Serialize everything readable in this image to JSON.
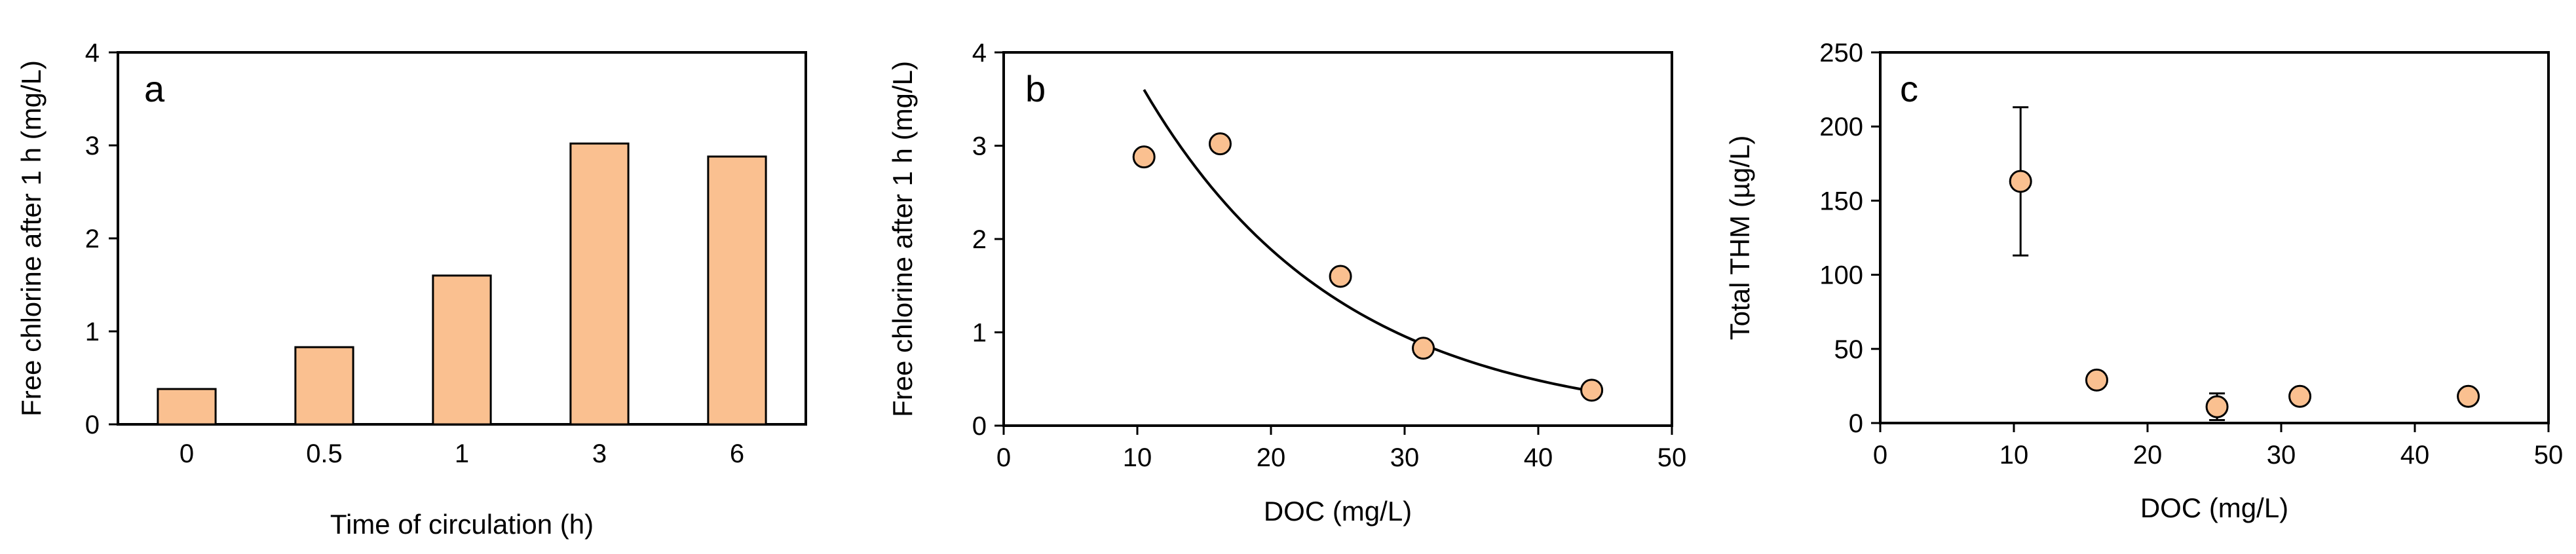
{
  "chart_data": [
    {
      "panel": "a",
      "type": "bar",
      "categories": [
        "0",
        "0.5",
        "1",
        "3",
        "6"
      ],
      "values": [
        0.38,
        0.83,
        1.6,
        3.02,
        2.88
      ],
      "xlabel": "Time of circulation (h)",
      "ylabel": "Free chlorine after 1 h (mg/L)",
      "ylim": [
        0,
        4
      ],
      "yticks": [
        "0",
        "1",
        "2",
        "3",
        "4"
      ],
      "grid": false
    },
    {
      "panel": "b",
      "type": "scatter",
      "x": [
        10.5,
        16.2,
        25.2,
        31.4,
        44.0
      ],
      "y": [
        2.88,
        3.02,
        1.6,
        0.83,
        0.38
      ],
      "fit": {
        "type": "exponential",
        "x_range": [
          10.5,
          44.0
        ],
        "y_start": 3.6,
        "y_end": 0.37
      },
      "xlabel": "DOC (mg/L)",
      "ylabel": "Free chlorine after 1 h (mg/L)",
      "xlim": [
        0,
        50
      ],
      "ylim": [
        0,
        4
      ],
      "xticks": [
        "0",
        "10",
        "20",
        "30",
        "40",
        "50"
      ],
      "yticks": [
        "0",
        "1",
        "2",
        "3",
        "4"
      ],
      "grid": false
    },
    {
      "panel": "c",
      "type": "scatter",
      "x": [
        10.5,
        16.2,
        25.2,
        31.4,
        44.0
      ],
      "y": [
        163,
        29,
        11,
        18,
        18
      ],
      "error": [
        50,
        0,
        9,
        0,
        0
      ],
      "xlabel": "DOC (mg/L)",
      "ylabel": "Total THM (µg/L)",
      "xlim": [
        0,
        50
      ],
      "ylim": [
        0,
        250
      ],
      "xticks": [
        "0",
        "10",
        "20",
        "30",
        "40",
        "50"
      ],
      "yticks": [
        "0",
        "50",
        "100",
        "150",
        "200",
        "250"
      ],
      "grid": false
    }
  ],
  "style": {
    "fill_color": "#FAC090",
    "stroke_color": "#000000"
  }
}
